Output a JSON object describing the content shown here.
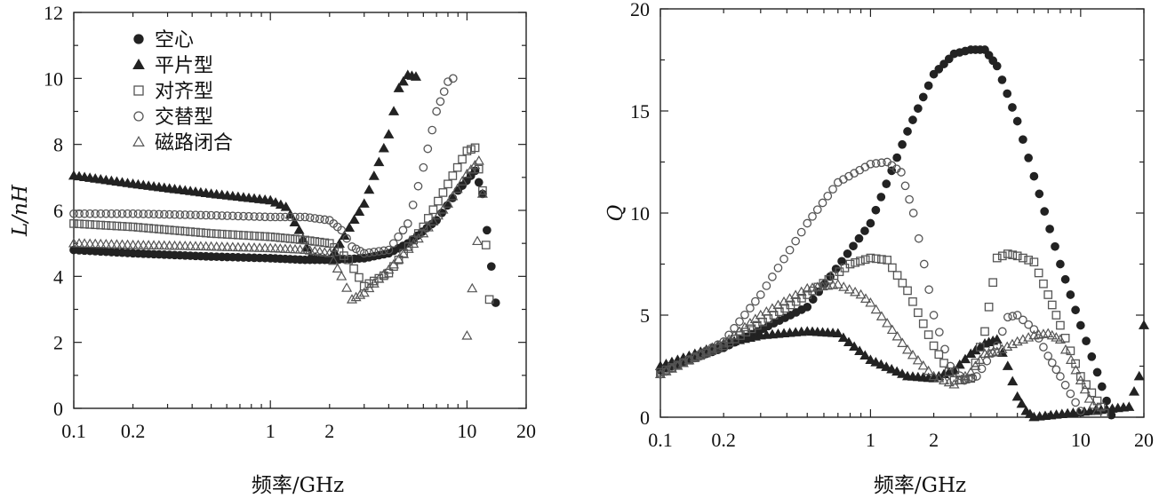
{
  "chart_data": [
    {
      "type": "scatter",
      "xlabel": "频率/GHz",
      "ylabel": "L/nH",
      "xscale": "log",
      "xlim": [
        0.1,
        20
      ],
      "ylim": [
        0,
        12
      ],
      "xticks": [
        "0.1",
        "0.2",
        "1",
        "2",
        "10",
        "20"
      ],
      "yticks": [
        "0",
        "2",
        "4",
        "6",
        "8",
        "10",
        "12"
      ],
      "legend_position": "top-left",
      "series": [
        {
          "name": "空心",
          "marker": "filled-circle",
          "x": [
            0.1,
            0.2,
            0.5,
            1,
            1.5,
            2,
            3,
            4,
            5,
            7,
            9,
            11,
            12,
            14
          ],
          "y": [
            4.8,
            4.7,
            4.6,
            4.55,
            4.5,
            4.5,
            4.55,
            4.7,
            5,
            5.7,
            6.6,
            7.2,
            6.5,
            3.2
          ]
        },
        {
          "name": "平片型",
          "marker": "filled-triangle",
          "x": [
            0.1,
            0.2,
            0.5,
            1,
            1.2,
            1.4,
            1.6,
            2,
            3,
            4,
            4.5,
            5,
            5.5
          ],
          "y": [
            7.05,
            6.8,
            6.5,
            6.3,
            6.1,
            5.4,
            4.6,
            4.5,
            6.2,
            8.3,
            9.7,
            10.1,
            10.05
          ]
        },
        {
          "name": "对齐型",
          "marker": "open-square",
          "x": [
            0.1,
            0.2,
            0.5,
            1,
            1.5,
            2,
            2.5,
            3,
            4,
            6,
            8,
            10,
            11,
            12,
            13
          ],
          "y": [
            5.6,
            5.5,
            5.3,
            5.2,
            5.1,
            5.0,
            4.5,
            3.7,
            4.1,
            5.5,
            6.8,
            7.8,
            7.9,
            6.6,
            3.3
          ]
        },
        {
          "name": "交替型",
          "marker": "open-circle",
          "x": [
            0.1,
            0.2,
            0.5,
            1,
            1.5,
            2,
            2.3,
            2.6,
            3,
            4,
            5,
            6,
            7,
            8,
            8.5
          ],
          "y": [
            5.9,
            5.9,
            5.85,
            5.8,
            5.8,
            5.7,
            5.4,
            4.9,
            4.7,
            4.8,
            5.6,
            7.3,
            9.0,
            9.9,
            10.0
          ]
        },
        {
          "name": "磁路闭合",
          "marker": "open-triangle",
          "x": [
            0.1,
            0.2,
            0.5,
            1,
            1.5,
            2,
            2.3,
            2.6,
            3,
            4,
            6,
            8,
            10,
            11.5,
            12,
            10
          ],
          "y": [
            5.0,
            4.95,
            4.9,
            4.85,
            4.8,
            4.7,
            4.0,
            3.3,
            3.5,
            4.2,
            5.3,
            6.2,
            7.1,
            7.5,
            6.5,
            2.2
          ]
        }
      ]
    },
    {
      "type": "scatter",
      "xlabel": "频率/GHz",
      "ylabel": "Q",
      "xscale": "log",
      "xlim": [
        0.1,
        20
      ],
      "ylim": [
        0,
        20
      ],
      "xticks": [
        "0.1",
        "0.2",
        "1",
        "2",
        "10",
        "20"
      ],
      "yticks": [
        "0",
        "5",
        "10",
        "15",
        "20"
      ],
      "series": [
        {
          "name": "空心",
          "marker": "filled-circle",
          "x": [
            0.1,
            0.2,
            0.5,
            1,
            1.5,
            2,
            2.5,
            3,
            3.5,
            4,
            5,
            6,
            8,
            10,
            12,
            14
          ],
          "y": [
            2.3,
            3.4,
            5.4,
            9.5,
            14.0,
            16.8,
            17.8,
            18.0,
            18.0,
            17.2,
            14.5,
            11.8,
            7.5,
            4.5,
            2.2,
            0.1
          ]
        },
        {
          "name": "平片型",
          "marker": "filled-triangle",
          "x": [
            0.1,
            0.2,
            0.3,
            0.5,
            0.7,
            1,
            1.5,
            2,
            2.5,
            3,
            3.5,
            4,
            4.5,
            5,
            5.5,
            6,
            17,
            19,
            20
          ],
          "y": [
            2.5,
            3.6,
            4.0,
            4.2,
            4.1,
            2.8,
            2.0,
            1.9,
            2.3,
            3.1,
            3.6,
            3.8,
            2.5,
            1.0,
            0.3,
            0.0,
            0.5,
            2.0,
            4.5
          ]
        },
        {
          "name": "对齐型",
          "marker": "open-square",
          "x": [
            0.1,
            0.2,
            0.5,
            0.8,
            1,
            1.2,
            1.5,
            2,
            2.5,
            3,
            3.5,
            4,
            4.5,
            5,
            6,
            7,
            8,
            10,
            12,
            13
          ],
          "y": [
            2.2,
            3.5,
            6.0,
            7.5,
            7.8,
            7.7,
            6.2,
            3.5,
            1.8,
            1.9,
            4.2,
            7.8,
            8.0,
            7.9,
            7.6,
            6.0,
            4.5,
            2.0,
            0.8,
            0.2
          ]
        },
        {
          "name": "交替型",
          "marker": "open-circle",
          "x": [
            0.1,
            0.2,
            0.3,
            0.5,
            0.7,
            1,
            1.2,
            1.4,
            1.6,
            1.8,
            2,
            2.4,
            2.8,
            3.2,
            4,
            4.5,
            5,
            6,
            7,
            8,
            10
          ],
          "y": [
            2.1,
            3.7,
            6.0,
            9.5,
            11.5,
            12.4,
            12.5,
            12.0,
            10.0,
            7.5,
            5.0,
            2.5,
            1.8,
            2.0,
            3.5,
            4.9,
            5.0,
            4.3,
            3.0,
            2.0,
            0.3
          ]
        },
        {
          "name": "磁路闭合",
          "marker": "open-triangle",
          "x": [
            0.1,
            0.2,
            0.3,
            0.5,
            0.7,
            0.9,
            1,
            1.2,
            1.5,
            2,
            2.5,
            3,
            3.5,
            4,
            5,
            6,
            7,
            8,
            9,
            10,
            11,
            12
          ],
          "y": [
            2.1,
            3.6,
            5.0,
            6.3,
            6.5,
            6.0,
            5.6,
            4.6,
            3.3,
            2.0,
            1.6,
            2.2,
            3.1,
            3.2,
            3.7,
            4.0,
            4.1,
            3.8,
            2.8,
            1.8,
            0.9,
            0.3
          ]
        }
      ]
    }
  ]
}
